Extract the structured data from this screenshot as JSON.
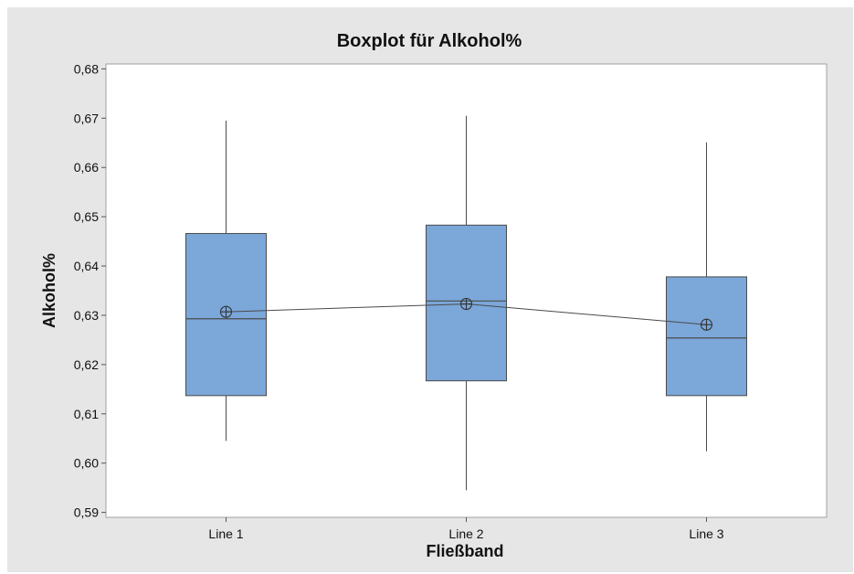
{
  "chart_data": {
    "type": "box",
    "title": "Boxplot für Alkohol%",
    "xlabel": "Fließband",
    "ylabel": "Alkohol%",
    "ylim": [
      0.589,
      0.681
    ],
    "yticks": [
      0.59,
      0.6,
      0.61,
      0.62,
      0.63,
      0.64,
      0.65,
      0.66,
      0.67,
      0.68
    ],
    "ytick_labels": [
      "0,59",
      "0,60",
      "0,61",
      "0,62",
      "0,63",
      "0,64",
      "0,65",
      "0,66",
      "0,67",
      "0,68"
    ],
    "categories": [
      "Line 1",
      "Line 2",
      "Line 3"
    ],
    "boxes": [
      {
        "category": "Line 1",
        "whisker_low": 0.6045,
        "q1": 0.6137,
        "median": 0.6293,
        "q3": 0.6466,
        "whisker_high": 0.6695,
        "mean": 0.6307
      },
      {
        "category": "Line 2",
        "whisker_low": 0.5945,
        "q1": 0.6167,
        "median": 0.6329,
        "q3": 0.6483,
        "whisker_high": 0.6705,
        "mean": 0.6323
      },
      {
        "category": "Line 3",
        "whisker_low": 0.6024,
        "q1": 0.6137,
        "median": 0.6254,
        "q3": 0.6378,
        "whisker_high": 0.6651,
        "mean": 0.6281
      }
    ],
    "mean_connect_line": true,
    "mean_symbol": "circle-plus",
    "grid": false,
    "colors": {
      "box_fill": "#7ba7d9",
      "box_stroke": "#4a4a4a",
      "line": "#4a4a4a",
      "frame_background": "#e6e6e6",
      "plot_background": "#ffffff"
    }
  }
}
